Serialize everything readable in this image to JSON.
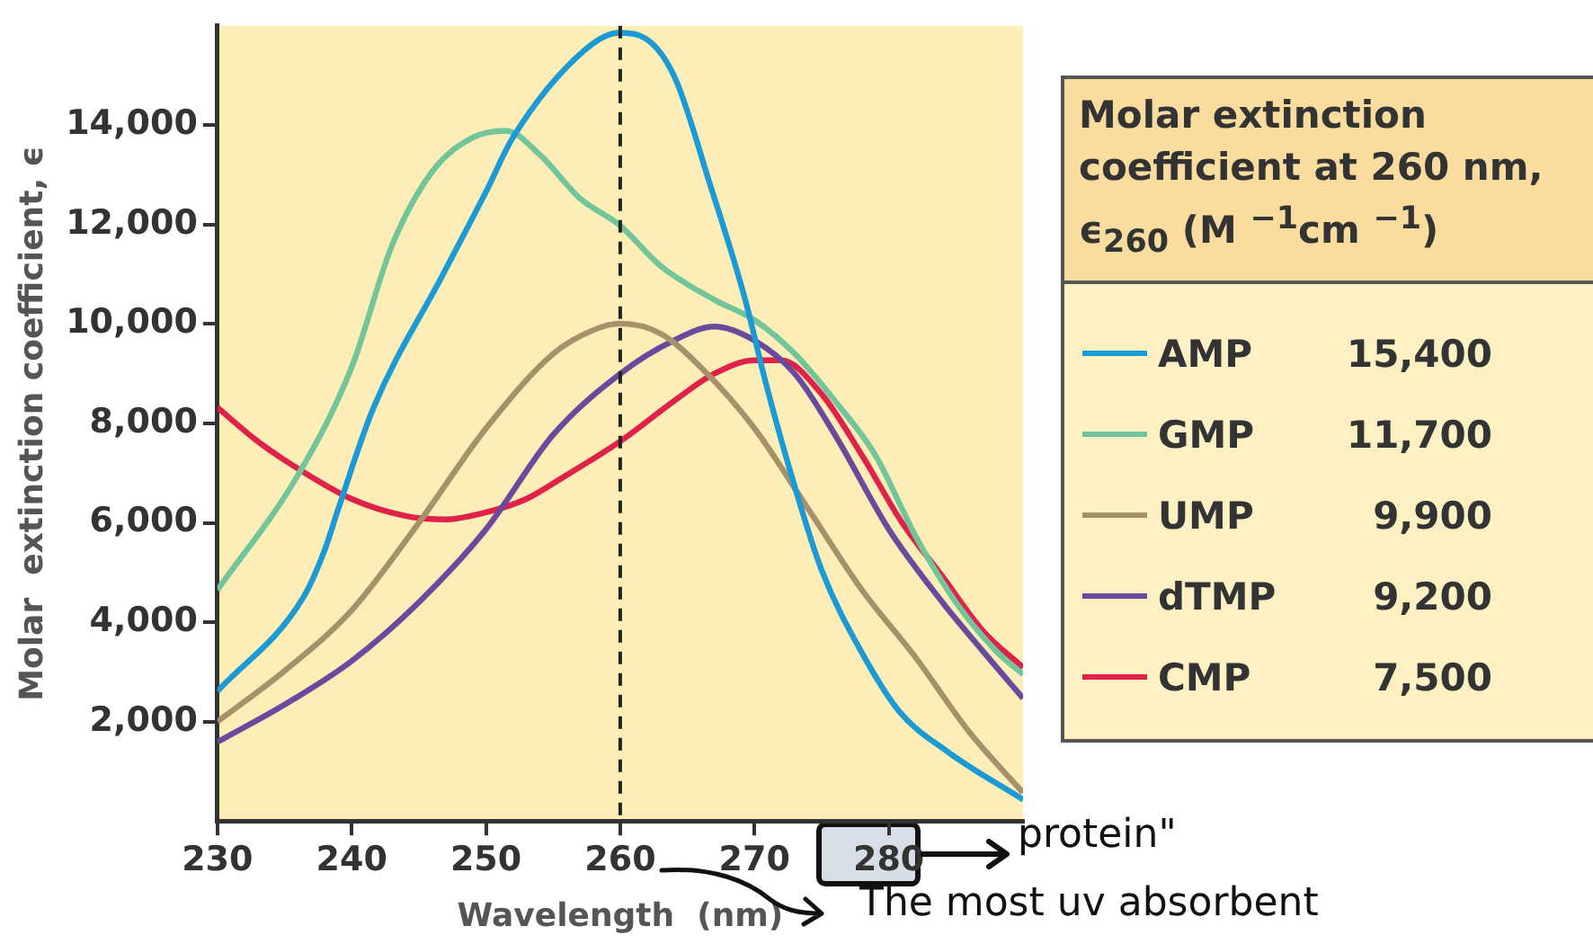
{
  "chart_data": {
    "type": "line",
    "xlabel": "Wavelength  (nm)",
    "ylabel": "Molar  extinction coefficient, ϵ",
    "legend_title": "Molar extinction coefficient at 260 nm, ϵ$_{260}$ (M $^{−1}$cm $^{−1}$)",
    "xlim": [
      230,
      290
    ],
    "xticks": [
      230,
      240,
      250,
      260,
      270,
      280
    ],
    "ylim": [
      0,
      16000
    ],
    "yticks": [
      {
        "value": 2000,
        "label": "2,000"
      },
      {
        "value": 4000,
        "label": "4,000"
      },
      {
        "value": 6000,
        "label": "6,000"
      },
      {
        "value": 8000,
        "label": "8,000"
      },
      {
        "value": 10000,
        "label": "10,000"
      },
      {
        "value": 12000,
        "label": "12,000"
      },
      {
        "value": 14000,
        "label": "14,000"
      }
    ],
    "grid": false,
    "legend": "right",
    "marker": "none",
    "line_style": "solid",
    "ref_lines": [
      {
        "axis": "x",
        "value": 260,
        "color": "#222222",
        "line_style": "dashed"
      }
    ],
    "annotations": [
      "15,400",
      "11,700",
      "9,900",
      "9,200",
      "7,500",
      "protein\"",
      "The most uv absorbent"
    ],
    "series": [
      {
        "name": "AMP",
        "color": "#1b9ad6",
        "x": [
          230,
          236.4,
          238,
          239,
          241.6,
          246.8,
          250,
          252,
          257.3,
          259.9,
          261.5,
          264,
          266.7,
          269.3,
          270.8,
          272.9,
          275,
          278.2,
          280.8,
          284.4,
          290
        ],
        "values": [
          2610,
          4500,
          5460,
          6280,
          8300,
          11000,
          12660,
          13750,
          15500,
          15860,
          15800,
          15000,
          12800,
          10500,
          8860,
          6820,
          5050,
          3290,
          2200,
          1390,
          430
        ]
      },
      {
        "name": "GMP",
        "color": "#72c59a",
        "x": [
          230,
          236,
          240,
          243,
          246,
          249,
          251.5,
          254,
          257,
          260,
          263,
          267,
          270,
          273,
          276,
          279,
          282,
          285,
          288,
          290
        ],
        "values": [
          4650,
          6960,
          9130,
          11580,
          13070,
          13750,
          13890,
          13410,
          12530,
          11980,
          11170,
          10490,
          10080,
          9400,
          8450,
          7360,
          5730,
          4400,
          3420,
          2950
        ]
      },
      {
        "name": "UMP",
        "color": "#a8916a",
        "x": [
          230,
          235,
          240,
          245,
          250,
          255,
          258,
          260,
          263,
          266,
          270,
          274,
          278,
          282,
          286,
          290
        ],
        "values": [
          2000,
          3020,
          4240,
          6000,
          7900,
          9400,
          9880,
          10010,
          9810,
          9130,
          7900,
          6280,
          4650,
          3290,
          1790,
          570
        ]
      },
      {
        "name": "dTMP",
        "color": "#6a4a9c",
        "x": [
          230,
          235,
          240,
          245,
          250,
          255,
          260,
          264,
          267,
          270,
          273,
          276,
          280,
          284,
          287,
          290
        ],
        "values": [
          1590,
          2340,
          3220,
          4400,
          5870,
          7770,
          9000,
          9670,
          9950,
          9670,
          9000,
          7770,
          5870,
          4400,
          3420,
          2470
        ]
      },
      {
        "name": "CMP",
        "color": "#e0224a",
        "x": [
          230,
          233,
          236,
          240,
          244,
          247,
          250,
          253,
          256,
          260,
          264,
          267,
          270,
          272,
          275,
          278,
          281,
          284,
          287,
          290
        ],
        "values": [
          8320,
          7640,
          7090,
          6480,
          6140,
          6070,
          6210,
          6480,
          6960,
          7640,
          8450,
          9000,
          9270,
          9270,
          8590,
          7360,
          6000,
          4920,
          3830,
          3090
        ]
      }
    ]
  }
}
